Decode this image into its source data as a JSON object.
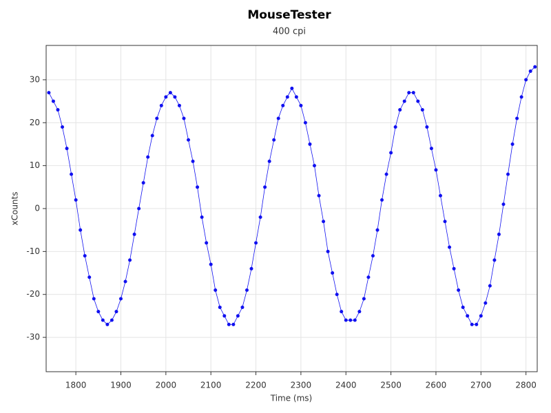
{
  "chart_data": {
    "type": "scatter-line",
    "title": "MouseTester",
    "subtitle": "400 cpi",
    "x_label": "Time (ms)",
    "y_label": "xCounts",
    "color": "#1010f0",
    "grid": true,
    "xlim": [
      1734,
      2825
    ],
    "ylim": [
      -38,
      38
    ],
    "xticks": [
      1800,
      1900,
      2000,
      2100,
      2200,
      2300,
      2400,
      2500,
      2600,
      2700,
      2800
    ],
    "yticks": [
      -30,
      -20,
      -10,
      0,
      10,
      20,
      30
    ],
    "x": [
      1740,
      1750,
      1760,
      1770,
      1780,
      1790,
      1800,
      1810,
      1820,
      1830,
      1840,
      1850,
      1860,
      1870,
      1880,
      1890,
      1900,
      1910,
      1920,
      1930,
      1940,
      1950,
      1960,
      1970,
      1980,
      1990,
      2000,
      2010,
      2020,
      2030,
      2040,
      2050,
      2060,
      2070,
      2080,
      2090,
      2100,
      2110,
      2120,
      2130,
      2140,
      2150,
      2160,
      2170,
      2180,
      2190,
      2200,
      2210,
      2220,
      2230,
      2240,
      2250,
      2260,
      2270,
      2280,
      2290,
      2300,
      2310,
      2320,
      2330,
      2340,
      2350,
      2360,
      2370,
      2380,
      2390,
      2400,
      2410,
      2420,
      2430,
      2440,
      2450,
      2460,
      2470,
      2480,
      2490,
      2500,
      2510,
      2520,
      2530,
      2540,
      2550,
      2560,
      2570,
      2580,
      2590,
      2600,
      2610,
      2620,
      2630,
      2640,
      2650,
      2660,
      2670,
      2680,
      2690,
      2700,
      2710,
      2720,
      2730,
      2740,
      2750,
      2760,
      2770,
      2780,
      2790,
      2800,
      2810,
      2820
    ],
    "values": [
      27,
      25,
      23,
      19,
      14,
      8,
      2,
      -5,
      -11,
      -16,
      -21,
      -24,
      -26,
      -27,
      -26,
      -24,
      -21,
      -17,
      -12,
      -6,
      0,
      6,
      12,
      17,
      21,
      24,
      26,
      27,
      26,
      24,
      21,
      16,
      11,
      5,
      -2,
      -8,
      -13,
      -19,
      -23,
      -25,
      -27,
      -27,
      -25,
      -23,
      -19,
      -14,
      -8,
      -2,
      5,
      11,
      16,
      21,
      24,
      26,
      28,
      26,
      24,
      20,
      15,
      10,
      3,
      -3,
      -10,
      -15,
      -20,
      -24,
      -26,
      -26,
      -26,
      -24,
      -21,
      -16,
      -11,
      -5,
      2,
      8,
      13,
      19,
      23,
      25,
      27,
      27,
      25,
      23,
      19,
      14,
      9,
      3,
      -3,
      -9,
      -14,
      -19,
      -23,
      -25,
      -27,
      -27,
      -25,
      -22,
      -18,
      -12,
      -6,
      1,
      8,
      15,
      21,
      26,
      30,
      32,
      33
    ]
  }
}
